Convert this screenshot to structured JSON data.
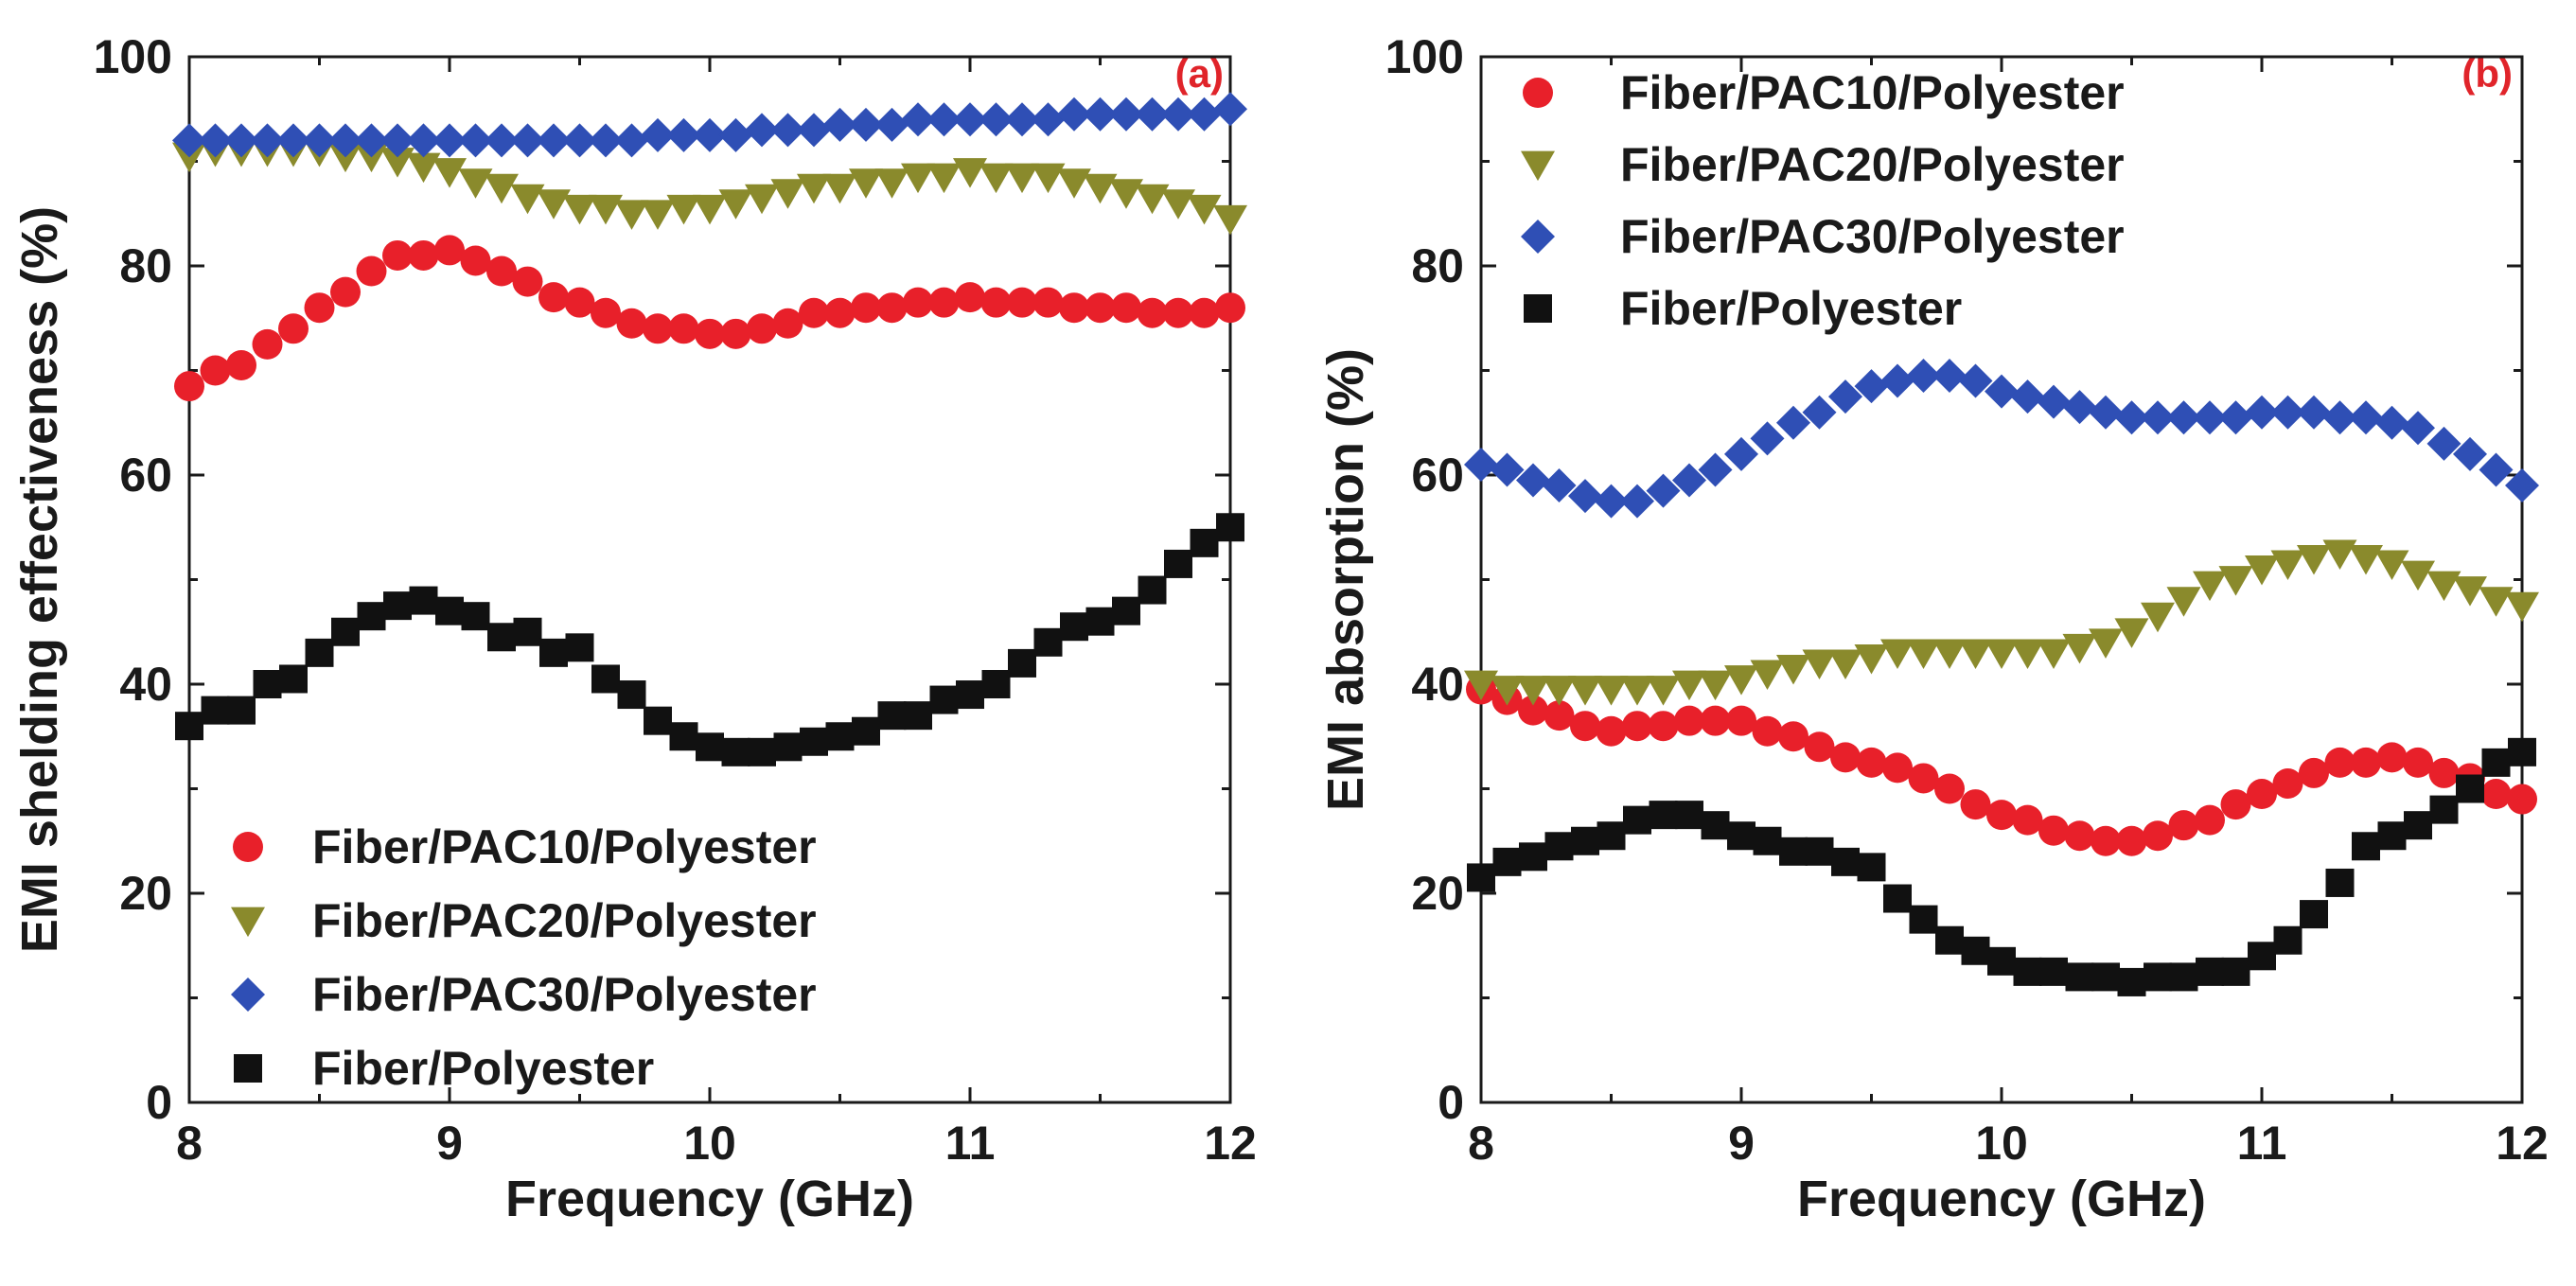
{
  "chart_data": [
    {
      "type": "scatter",
      "panel_label": "(a)",
      "xlabel": "Frequency (GHz)",
      "ylabel": "EMI shelding effectiveness (%)",
      "xlim": [
        8,
        12
      ],
      "ylim": [
        0,
        100
      ],
      "xticks": [
        8,
        9,
        10,
        11,
        12
      ],
      "yticks": [
        0,
        20,
        40,
        60,
        80,
        100
      ],
      "legend_position": "lower-left",
      "grid": false,
      "x": [
        8.0,
        8.1,
        8.2,
        8.3,
        8.4,
        8.5,
        8.6,
        8.7,
        8.8,
        8.9,
        9.0,
        9.1,
        9.2,
        9.3,
        9.4,
        9.5,
        9.6,
        9.7,
        9.8,
        9.9,
        10.0,
        10.1,
        10.2,
        10.3,
        10.4,
        10.5,
        10.6,
        10.7,
        10.8,
        10.9,
        11.0,
        11.1,
        11.2,
        11.3,
        11.4,
        11.5,
        11.6,
        11.7,
        11.8,
        11.9,
        12.0
      ],
      "series": [
        {
          "name": "Fiber/PAC10/Polyester",
          "color": "#e8202a",
          "marker": "circle",
          "values": [
            68.5,
            70.0,
            70.5,
            72.5,
            74.0,
            76.0,
            77.5,
            79.5,
            81.0,
            81.0,
            81.5,
            80.5,
            79.5,
            78.5,
            77.0,
            76.5,
            75.5,
            74.5,
            74.0,
            74.0,
            73.5,
            73.5,
            74.0,
            74.5,
            75.5,
            75.5,
            76.0,
            76.0,
            76.5,
            76.5,
            77.0,
            76.5,
            76.5,
            76.5,
            76.0,
            76.0,
            76.0,
            75.5,
            75.5,
            75.5,
            76.0
          ]
        },
        {
          "name": "Fiber/PAC20/Polyester",
          "color": "#8a8a2c",
          "marker": "triangle-down",
          "values": [
            90.5,
            91.0,
            91.0,
            91.0,
            91.0,
            91.0,
            90.5,
            90.5,
            90.0,
            89.5,
            89.0,
            88.0,
            87.5,
            86.5,
            86.0,
            85.5,
            85.5,
            85.0,
            85.0,
            85.5,
            85.5,
            86.0,
            86.5,
            87.0,
            87.5,
            87.5,
            88.0,
            88.0,
            88.5,
            88.5,
            89.0,
            88.5,
            88.5,
            88.5,
            88.0,
            87.5,
            87.0,
            86.5,
            86.0,
            85.5,
            84.5
          ]
        },
        {
          "name": "Fiber/PAC30/Polyester",
          "color": "#2f4fb5",
          "marker": "diamond",
          "values": [
            92.0,
            92.0,
            92.0,
            92.0,
            92.0,
            92.0,
            92.0,
            92.0,
            92.0,
            92.0,
            92.0,
            92.0,
            92.0,
            92.0,
            92.0,
            92.0,
            92.0,
            92.0,
            92.5,
            92.5,
            92.5,
            92.5,
            93.0,
            93.0,
            93.0,
            93.5,
            93.5,
            93.5,
            94.0,
            94.0,
            94.0,
            94.0,
            94.0,
            94.0,
            94.5,
            94.5,
            94.5,
            94.5,
            94.5,
            94.5,
            95.0
          ]
        },
        {
          "name": "Fiber/Polyester",
          "color": "#111111",
          "marker": "square",
          "values": [
            36.0,
            37.5,
            37.5,
            40.0,
            40.5,
            43.0,
            45.0,
            46.5,
            47.5,
            48.0,
            47.0,
            46.5,
            44.5,
            45.0,
            43.0,
            43.5,
            40.5,
            39.0,
            36.5,
            35.0,
            34.0,
            33.5,
            33.5,
            34.0,
            34.5,
            35.0,
            35.5,
            37.0,
            37.0,
            38.5,
            39.0,
            40.0,
            42.0,
            44.0,
            45.5,
            46.0,
            47.0,
            49.0,
            51.5,
            53.5,
            55.0
          ]
        }
      ]
    },
    {
      "type": "scatter",
      "panel_label": "(b)",
      "xlabel": "Frequency (GHz)",
      "ylabel": "EMI absorption (%)",
      "xlim": [
        8,
        12
      ],
      "ylim": [
        0,
        100
      ],
      "xticks": [
        8,
        9,
        10,
        11,
        12
      ],
      "yticks": [
        0,
        20,
        40,
        60,
        80,
        100
      ],
      "legend_position": "top-left",
      "grid": false,
      "x": [
        8.0,
        8.1,
        8.2,
        8.3,
        8.4,
        8.5,
        8.6,
        8.7,
        8.8,
        8.9,
        9.0,
        9.1,
        9.2,
        9.3,
        9.4,
        9.5,
        9.6,
        9.7,
        9.8,
        9.9,
        10.0,
        10.1,
        10.2,
        10.3,
        10.4,
        10.5,
        10.6,
        10.7,
        10.8,
        10.9,
        11.0,
        11.1,
        11.2,
        11.3,
        11.4,
        11.5,
        11.6,
        11.7,
        11.8,
        11.9,
        12.0
      ],
      "series": [
        {
          "name": "Fiber/PAC10/Polyester",
          "color": "#e8202a",
          "marker": "circle",
          "values": [
            39.5,
            38.5,
            37.5,
            37.0,
            36.0,
            35.5,
            36.0,
            36.0,
            36.5,
            36.5,
            36.5,
            35.5,
            35.0,
            34.0,
            33.0,
            32.5,
            32.0,
            31.0,
            30.0,
            28.5,
            27.5,
            27.0,
            26.0,
            25.5,
            25.0,
            25.0,
            25.5,
            26.5,
            27.0,
            28.5,
            29.5,
            30.5,
            31.5,
            32.5,
            32.5,
            33.0,
            32.5,
            31.5,
            31.0,
            29.5,
            29.0
          ]
        },
        {
          "name": "Fiber/PAC20/Polyester",
          "color": "#8a8a2c",
          "marker": "triangle-down",
          "values": [
            40.0,
            39.5,
            39.5,
            39.5,
            39.5,
            39.5,
            39.5,
            39.5,
            40.0,
            40.0,
            40.5,
            41.0,
            41.5,
            42.0,
            42.0,
            42.5,
            43.0,
            43.0,
            43.0,
            43.0,
            43.0,
            43.0,
            43.0,
            43.5,
            44.0,
            45.0,
            46.5,
            48.0,
            49.5,
            50.0,
            51.0,
            51.5,
            52.0,
            52.5,
            52.0,
            51.5,
            50.5,
            49.5,
            49.0,
            48.0,
            47.5
          ]
        },
        {
          "name": "Fiber/PAC30/Polyester",
          "color": "#2f4fb5",
          "marker": "diamond",
          "values": [
            61.0,
            60.5,
            59.5,
            59.0,
            58.0,
            57.5,
            57.5,
            58.5,
            59.5,
            60.5,
            62.0,
            63.5,
            65.0,
            66.0,
            67.5,
            68.5,
            69.0,
            69.5,
            69.5,
            69.0,
            68.0,
            67.5,
            67.0,
            66.5,
            66.0,
            65.5,
            65.5,
            65.5,
            65.5,
            65.5,
            66.0,
            66.0,
            66.0,
            65.5,
            65.5,
            65.0,
            64.5,
            63.0,
            62.0,
            60.5,
            59.0
          ]
        },
        {
          "name": "Fiber/Polyester",
          "color": "#111111",
          "marker": "square",
          "values": [
            21.5,
            23.0,
            23.5,
            24.5,
            25.0,
            25.5,
            27.0,
            27.5,
            27.5,
            26.5,
            25.5,
            25.0,
            24.0,
            24.0,
            23.0,
            22.5,
            19.5,
            17.5,
            15.5,
            14.5,
            13.5,
            12.5,
            12.5,
            12.0,
            12.0,
            11.5,
            12.0,
            12.0,
            12.5,
            12.5,
            14.0,
            15.5,
            18.0,
            21.0,
            24.5,
            25.5,
            26.5,
            28.0,
            30.0,
            32.5,
            33.5
          ]
        }
      ]
    }
  ]
}
